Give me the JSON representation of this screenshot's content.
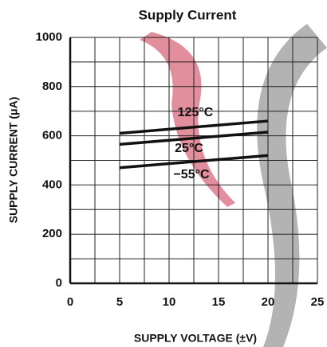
{
  "chart_data": {
    "type": "line",
    "title": "Supply Current",
    "x_label": "SUPPLY VOLTAGE (±V)",
    "y_label": "SUPPLY CURRENT (μA)",
    "x": [
      5,
      20
    ],
    "series": [
      {
        "name": "125°C",
        "color": "#111111",
        "values": [
          610,
          660
        ]
      },
      {
        "name": "25°C",
        "color": "#111111",
        "values": [
          565,
          615
        ]
      },
      {
        "name": "−55°C",
        "color": "#111111",
        "values": [
          470,
          520
        ]
      }
    ],
    "xlim": [
      0,
      25
    ],
    "xticks": [
      0,
      5,
      10,
      15,
      20,
      25
    ],
    "ylim": [
      0,
      1000
    ],
    "yticks": [
      0,
      200,
      400,
      600,
      800,
      1000
    ],
    "grid": true
  }
}
